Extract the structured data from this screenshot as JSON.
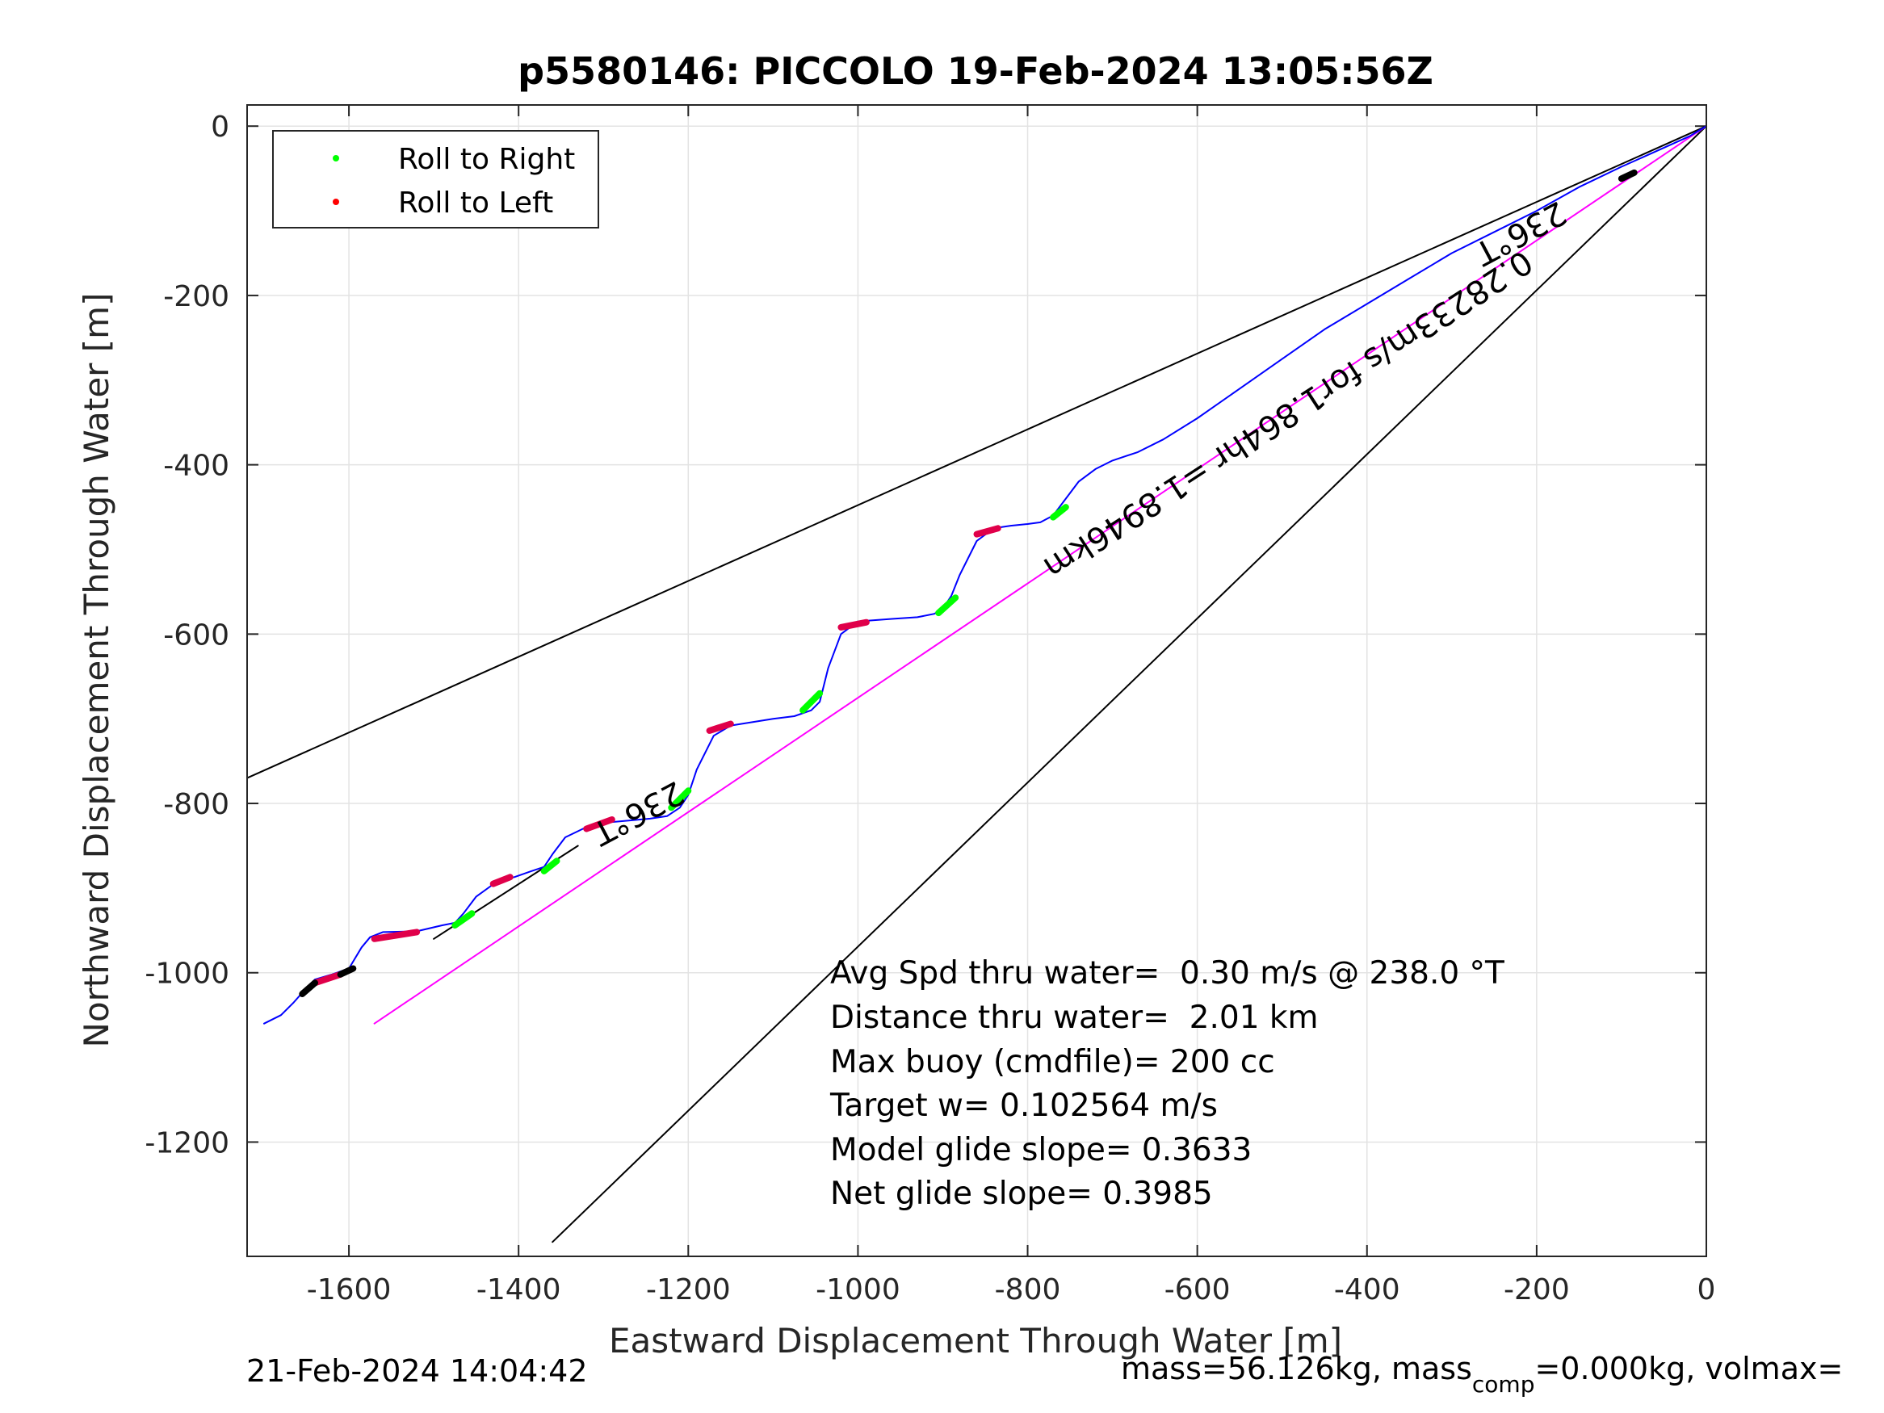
{
  "chart_data": {
    "type": "line",
    "title": "p5580146: PICCOLO 19-Feb-2024 13:05:56Z",
    "xlabel": "Eastward Displacement Through Water [m]",
    "ylabel": "Northward Displacement Through Water [m]",
    "xlim": [
      -1720,
      0
    ],
    "ylim": [
      -1335,
      25
    ],
    "grid": true,
    "x_ticks": [
      -1600,
      -1400,
      -1200,
      -1000,
      -800,
      -600,
      -400,
      -200,
      0
    ],
    "y_ticks": [
      0,
      -200,
      -400,
      -600,
      -800,
      -1000,
      -1200
    ],
    "legend": {
      "position": "top-left",
      "entries": [
        {
          "label": "Roll to Right",
          "color": "#00ff00"
        },
        {
          "label": "Roll to Left",
          "color": "#ff0000"
        }
      ]
    },
    "series": [
      {
        "name": "track",
        "color": "#0000ff",
        "x": [
          0,
          -20,
          -60,
          -100,
          -150,
          -200,
          -250,
          -300,
          -350,
          -400,
          -450,
          -500,
          -550,
          -600,
          -640,
          -670,
          -700,
          -720,
          -740,
          -755,
          -770,
          -785,
          -800,
          -820,
          -840,
          -860,
          -880,
          -890,
          -900,
          -910,
          -930,
          -960,
          -1000,
          -1020,
          -1035,
          -1045,
          -1055,
          -1075,
          -1100,
          -1150,
          -1170,
          -1190,
          -1200,
          -1210,
          -1225,
          -1245,
          -1290,
          -1320,
          -1345,
          -1360,
          -1370,
          -1385,
          -1405,
          -1425,
          -1450,
          -1465,
          -1475,
          -1490,
          -1520,
          -1560,
          -1575,
          -1585,
          -1600,
          -1620,
          -1640,
          -1650,
          -1665,
          -1680,
          -1700
        ],
        "y": [
          0,
          -12,
          -30,
          -48,
          -72,
          -100,
          -125,
          -150,
          -180,
          -210,
          -240,
          -275,
          -310,
          -345,
          -370,
          -385,
          -395,
          -405,
          -420,
          -440,
          -460,
          -468,
          -470,
          -472,
          -475,
          -490,
          -530,
          -555,
          -570,
          -576,
          -580,
          -582,
          -585,
          -600,
          -640,
          -680,
          -690,
          -697,
          -700,
          -708,
          -720,
          -760,
          -790,
          -805,
          -815,
          -818,
          -822,
          -828,
          -840,
          -860,
          -875,
          -880,
          -887,
          -892,
          -910,
          -930,
          -941,
          -944,
          -951,
          -952,
          -958,
          -970,
          -995,
          -1002,
          -1008,
          -1018,
          -1035,
          -1050,
          -1060
        ]
      },
      {
        "name": "",
        "color": "#ff00ff",
        "x": [
          0,
          -1570
        ],
        "y": [
          0,
          -1060
        ]
      },
      {
        "name": "",
        "color": "#000000",
        "x": [
          0,
          -1720
        ],
        "y": [
          0,
          -770
        ]
      },
      {
        "name": "",
        "color": "#000000",
        "x": [
          0,
          -1360
        ],
        "y": [
          0,
          -1318
        ]
      },
      {
        "name": "",
        "color": "#000000",
        "x": [
          -1500,
          -1330
        ],
        "y": [
          -960,
          -850
        ]
      }
    ],
    "roll_right_segments": [
      {
        "x": [
          -755,
          -770
        ],
        "y": [
          -450,
          -462
        ]
      },
      {
        "x": [
          -885,
          -905
        ],
        "y": [
          -557,
          -575
        ]
      },
      {
        "x": [
          -1045,
          -1065
        ],
        "y": [
          -670,
          -690
        ]
      },
      {
        "x": [
          -1200,
          -1220
        ],
        "y": [
          -785,
          -805
        ]
      },
      {
        "x": [
          -1355,
          -1370
        ],
        "y": [
          -868,
          -880
        ]
      },
      {
        "x": [
          -1455,
          -1475
        ],
        "y": [
          -930,
          -944
        ]
      }
    ],
    "roll_left_segments": [
      {
        "x": [
          -835,
          -860
        ],
        "y": [
          -475,
          -482
        ]
      },
      {
        "x": [
          -990,
          -1020
        ],
        "y": [
          -586,
          -592
        ]
      },
      {
        "x": [
          -1150,
          -1175
        ],
        "y": [
          -706,
          -714
        ]
      },
      {
        "x": [
          -1290,
          -1320
        ],
        "y": [
          -819,
          -830
        ]
      },
      {
        "x": [
          -1410,
          -1430
        ],
        "y": [
          -887,
          -895
        ]
      },
      {
        "x": [
          -1520,
          -1570
        ],
        "y": [
          -952,
          -960
        ]
      },
      {
        "x": [
          -1610,
          -1640
        ],
        "y": [
          -1002,
          -1012
        ]
      }
    ],
    "black_segments": [
      {
        "x": [
          -1595,
          -1610
        ],
        "y": [
          -995,
          -1002
        ]
      },
      {
        "x": [
          -1640,
          -1655
        ],
        "y": [
          -1012,
          -1025
        ]
      },
      {
        "x": [
          -85,
          -100
        ],
        "y": [
          -55,
          -62
        ]
      }
    ],
    "annotations": [
      {
        "text": "236°T",
        "x": -225,
        "y": -115,
        "rotation": 152
      },
      {
        "text": "0.28233m/s for1.864hr =1.8946km",
        "x": -500,
        "y": -330,
        "rotation": 147
      },
      {
        "text": "236°T",
        "x": -1265,
        "y": -800,
        "rotation": 152
      }
    ],
    "stats": [
      "Avg Spd thru water=  0.30 m/s @ 238.0 °T",
      "Distance thru water=  2.01 km",
      "Max buoy (cmdfile)= 200 cc",
      "Target w= 0.102564 m/s",
      "Model glide slope= 0.3633",
      "Net glide slope= 0.3985"
    ],
    "footer_left": "21-Feb-2024 14:04:42",
    "footer_right": {
      "prefix": "mass=56.126kg, mass",
      "subscript": "comp",
      "suffix": "=0.000kg, volmax="
    }
  }
}
